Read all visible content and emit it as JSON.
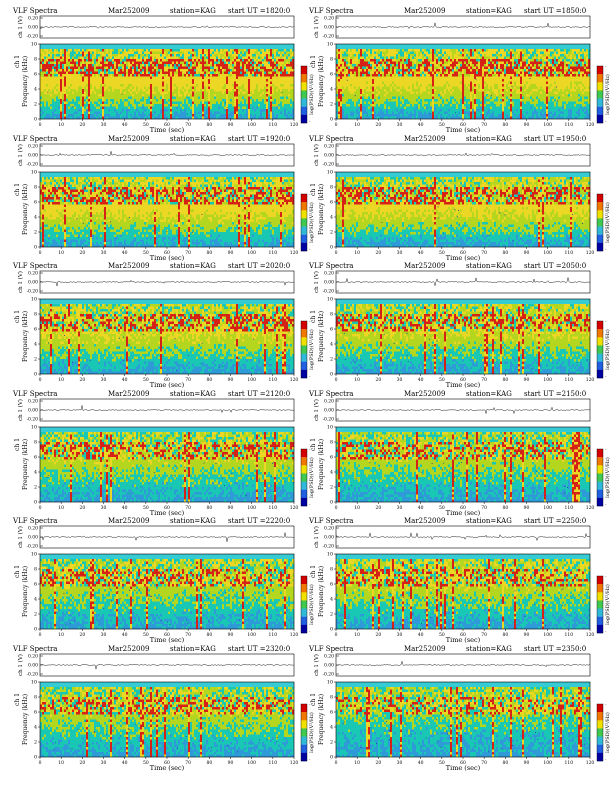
{
  "page_colors": {
    "background": "#ffffff",
    "axis": "#000000",
    "spectrogram_low": "#2e9ad8",
    "spectrogram_mid": "#19c8b4",
    "spectrogram_high_green": "#b4d61e",
    "spectrogram_yellow": "#ecd824",
    "spectrogram_red": "#d62216",
    "noise_dot": "#1e3ca0",
    "band_above": "#37cbd4"
  },
  "colorbar_stops": [
    "#d40000",
    "#f07800",
    "#f0e000",
    "#40c850",
    "#30b8d8",
    "#2060e0",
    "#0000a0"
  ],
  "chart_data": [
    {
      "type": "heatmap",
      "header": {
        "label": "VLF Spectra",
        "date": "Mar252009",
        "station": "station=KAG",
        "start": "start  UT =1820:0"
      },
      "top_ylabel": "ch 1 (V)",
      "top_ticks": [
        "0.20",
        "0.00",
        "-0.20"
      ],
      "ylabel_ch": "ch 1",
      "ylabel": "Frequency  (kHz)",
      "yticks": [
        "0",
        "2",
        "4",
        "6",
        "8",
        "10"
      ],
      "ylim": [
        0,
        10
      ],
      "xlabel": "Time  (sec)",
      "xticks": [
        "0",
        "10",
        "20",
        "30",
        "40",
        "50",
        "60",
        "70",
        "80",
        "90",
        "100",
        "110",
        "120"
      ],
      "xlim": [
        0,
        120
      ],
      "colorbar_label": "log(PSD)(V²/Hz)",
      "colorbar_ticks": [
        "-",
        "-"
      ],
      "intensity": 1.0,
      "hiss_band": [
        6.0,
        8.5
      ]
    },
    {
      "type": "heatmap",
      "header": {
        "label": "VLF Spectra",
        "date": "Mar252009",
        "station": "station=KAG",
        "start": "start  UT =1850:0"
      },
      "top_ylabel": "ch 1 (V)",
      "top_ticks": [
        "0.20",
        "0.00",
        "-0.20"
      ],
      "ylabel_ch": "ch 1",
      "ylabel": "Frequency  (kHz)",
      "yticks": [
        "0",
        "2",
        "4",
        "6",
        "8",
        "10"
      ],
      "ylim": [
        0,
        10
      ],
      "xlabel": "Time  (sec)",
      "xticks": [
        "0",
        "10",
        "20",
        "30",
        "40",
        "50",
        "60",
        "70",
        "80",
        "90",
        "100",
        "110",
        "120"
      ],
      "xlim": [
        0,
        120
      ],
      "colorbar_label": "log(PSD)(V²/Hz)",
      "colorbar_ticks": [
        "-",
        "-"
      ],
      "intensity": 0.95,
      "hiss_band": [
        6.0,
        8.5
      ]
    },
    {
      "type": "heatmap",
      "header": {
        "label": "VLF Spectra",
        "date": "Mar252009",
        "station": "station=KAG",
        "start": "start  UT =1920:0"
      },
      "top_ylabel": "ch 1 (V)",
      "top_ticks": [
        "0.20",
        "0.00",
        "-0.20"
      ],
      "ylabel_ch": "ch 1",
      "ylabel": "Frequency  (kHz)",
      "yticks": [
        "0",
        "2",
        "4",
        "6",
        "8",
        "10"
      ],
      "ylim": [
        0,
        10
      ],
      "xlabel": "Time  (sec)",
      "xticks": [
        "0",
        "10",
        "20",
        "30",
        "40",
        "50",
        "60",
        "70",
        "80",
        "90",
        "100",
        "110",
        "120"
      ],
      "xlim": [
        0,
        120
      ],
      "colorbar_label": "log(PSD)(V²/Hz)",
      "colorbar_ticks": [
        "-",
        "-"
      ],
      "intensity": 0.95,
      "hiss_band": [
        6.0,
        8.5
      ]
    },
    {
      "type": "heatmap",
      "header": {
        "label": "VLF Spectra",
        "date": "Mar252009",
        "station": "station=KAG",
        "start": "start  UT =1950:0"
      },
      "top_ylabel": "ch 1 (V)",
      "top_ticks": [
        "0.20",
        "0.00",
        "-0.20"
      ],
      "ylabel_ch": "ch 1",
      "ylabel": "Frequency  (kHz)",
      "yticks": [
        "0",
        "2",
        "4",
        "6",
        "8",
        "10"
      ],
      "ylim": [
        0,
        10
      ],
      "xlabel": "Time  (sec)",
      "xticks": [
        "0",
        "10",
        "20",
        "30",
        "40",
        "50",
        "60",
        "70",
        "80",
        "90",
        "100",
        "110",
        "120"
      ],
      "xlim": [
        0,
        120
      ],
      "colorbar_label": "log(PSD)(V²/Hz)",
      "colorbar_ticks": [
        "-",
        "-"
      ],
      "intensity": 0.9,
      "hiss_band": [
        6.0,
        8.5
      ]
    },
    {
      "type": "heatmap",
      "header": {
        "label": "VLF Spectra",
        "date": "Mar252009",
        "station": "station=KAG",
        "start": "start  UT =2020:0"
      },
      "top_ylabel": "ch 1 (V)",
      "top_ticks": [
        "0.20",
        "0.00",
        "-0.20"
      ],
      "ylabel_ch": "ch 1",
      "ylabel": "Frequency  (kHz)",
      "yticks": [
        "0",
        "2",
        "4",
        "6",
        "8",
        "10"
      ],
      "ylim": [
        0,
        10
      ],
      "xlabel": "Time  (sec)",
      "xticks": [
        "0",
        "10",
        "20",
        "30",
        "40",
        "50",
        "60",
        "70",
        "80",
        "90",
        "100",
        "110",
        "120"
      ],
      "xlim": [
        0,
        120
      ],
      "colorbar_label": "log(PSD)(V²/Hz)",
      "colorbar_ticks": [
        "-",
        "-"
      ],
      "intensity": 0.75,
      "hiss_band": [
        6.0,
        8.5
      ]
    },
    {
      "type": "heatmap",
      "header": {
        "label": "VLF Spectra",
        "date": "Mar252009",
        "station": "station=KAG",
        "start": "start  UT =2050:0"
      },
      "top_ylabel": "ch 1 (V)",
      "top_ticks": [
        "0.20",
        "0.00",
        "-0.20"
      ],
      "ylabel_ch": "ch 1",
      "ylabel": "Frequency  (kHz)",
      "yticks": [
        "0",
        "2",
        "4",
        "6",
        "8",
        "10"
      ],
      "ylim": [
        0,
        10
      ],
      "xlabel": "Time  (sec)",
      "xticks": [
        "0",
        "10",
        "20",
        "30",
        "40",
        "50",
        "60",
        "70",
        "80",
        "90",
        "100",
        "110",
        "120"
      ],
      "xlim": [
        0,
        120
      ],
      "colorbar_label": "log(PSD)(V²/Hz)",
      "colorbar_ticks": [
        "-",
        "-"
      ],
      "intensity": 0.7,
      "hiss_band": [
        6.0,
        8.5
      ]
    },
    {
      "type": "heatmap",
      "header": {
        "label": "VLF Spectra",
        "date": "Mar252009",
        "station": "station=KAG",
        "start": "start  UT =2120:0"
      },
      "top_ylabel": "ch 1 (V)",
      "top_ticks": [
        "0.20",
        "0.00",
        "-0.20"
      ],
      "ylabel_ch": "ch 1",
      "ylabel": "Frequency  (kHz)",
      "yticks": [
        "0",
        "2",
        "4",
        "6",
        "8",
        "10"
      ],
      "ylim": [
        0,
        10
      ],
      "xlabel": "Time  (sec)",
      "xticks": [
        "0",
        "10",
        "20",
        "30",
        "40",
        "50",
        "60",
        "70",
        "80",
        "90",
        "100",
        "110",
        "120"
      ],
      "xlim": [
        0,
        120
      ],
      "colorbar_label": "log(PSD)(V²/Hz)",
      "colorbar_ticks": [
        "-",
        "-"
      ],
      "intensity": 0.6,
      "hiss_band": [
        6.0,
        8.5
      ]
    },
    {
      "type": "heatmap",
      "header": {
        "label": "VLF Spectra",
        "date": "Mar252009",
        "station": "station=KAG",
        "start": "start  UT =2150:0"
      },
      "top_ylabel": "ch 1 (V)",
      "top_ticks": [
        "0.20",
        "0.00",
        "-0.20"
      ],
      "ylabel_ch": "ch 1",
      "ylabel": "Frequency  (kHz)",
      "yticks": [
        "0",
        "2",
        "4",
        "6",
        "8",
        "10"
      ],
      "ylim": [
        0,
        10
      ],
      "xlabel": "Time  (sec)",
      "xticks": [
        "0",
        "10",
        "20",
        "30",
        "40",
        "50",
        "60",
        "70",
        "80",
        "90",
        "100",
        "110",
        "120"
      ],
      "xlim": [
        0,
        120
      ],
      "colorbar_label": "log(PSD)(V²/Hz)",
      "colorbar_ticks": [
        "-",
        "-"
      ],
      "intensity": 0.55,
      "hiss_band": [
        6.0,
        8.5
      ]
    },
    {
      "type": "heatmap",
      "header": {
        "label": "VLF Spectra",
        "date": "Mar252009",
        "station": "station=KAG",
        "start": "start  UT =2220:0"
      },
      "top_ylabel": "ch 1 (V)",
      "top_ticks": [
        "0.20",
        "0.00",
        "-0.20"
      ],
      "ylabel_ch": "ch 1",
      "ylabel": "Frequency  (kHz)",
      "yticks": [
        "0",
        "2",
        "4",
        "6",
        "8",
        "10"
      ],
      "ylim": [
        0,
        10
      ],
      "xlabel": "Time  (sec)",
      "xticks": [
        "0",
        "10",
        "20",
        "30",
        "40",
        "50",
        "60",
        "70",
        "80",
        "90",
        "100",
        "110",
        "120"
      ],
      "xlim": [
        0,
        120
      ],
      "colorbar_label": "log(PSD)(V²/Hz)",
      "colorbar_ticks": [
        "-",
        "-"
      ],
      "intensity": 0.55,
      "hiss_band": [
        6.0,
        8.5
      ]
    },
    {
      "type": "heatmap",
      "header": {
        "label": "VLF Spectra",
        "date": "Mar252009",
        "station": "station=KAG",
        "start": "start  UT =2250:0"
      },
      "top_ylabel": "ch 1 (V)",
      "top_ticks": [
        "0.20",
        "0.00",
        "-0.20"
      ],
      "ylabel_ch": "ch 1",
      "ylabel": "Frequency  (kHz)",
      "yticks": [
        "0",
        "2",
        "4",
        "6",
        "8",
        "10"
      ],
      "ylim": [
        0,
        10
      ],
      "xlabel": "Time  (sec)",
      "xticks": [
        "0",
        "10",
        "20",
        "30",
        "40",
        "50",
        "60",
        "70",
        "80",
        "90",
        "100",
        "110",
        "120"
      ],
      "xlim": [
        0,
        120
      ],
      "colorbar_label": "log(PSD)(V²/Hz)",
      "colorbar_ticks": [
        "-",
        "-"
      ],
      "intensity": 0.6,
      "hiss_band": [
        6.0,
        8.5
      ]
    },
    {
      "type": "heatmap",
      "header": {
        "label": "VLF Spectra",
        "date": "Mar252009",
        "station": "station=KAG",
        "start": "start  UT =2320:0"
      },
      "top_ylabel": "ch 1 (V)",
      "top_ticks": [
        "0.20",
        "0.00",
        "-0.20"
      ],
      "ylabel_ch": "ch 1",
      "ylabel": "Frequency  (kHz)",
      "yticks": [
        "0",
        "2",
        "4",
        "6",
        "8",
        "10"
      ],
      "ylim": [
        0,
        10
      ],
      "xlabel": "Time  (sec)",
      "xticks": [
        "0",
        "10",
        "20",
        "30",
        "40",
        "50",
        "60",
        "70",
        "80",
        "90",
        "100",
        "110",
        "120"
      ],
      "xlim": [
        0,
        120
      ],
      "colorbar_label": "log(PSD)(V²/Hz)",
      "colorbar_ticks": [
        "-",
        "-"
      ],
      "intensity": 0.55,
      "hiss_band": [
        6.0,
        8.5
      ]
    },
    {
      "type": "heatmap",
      "header": {
        "label": "VLF Spectra",
        "date": "Mar252009",
        "station": "station=KAG",
        "start": "start  UT =2350:0"
      },
      "top_ylabel": "ch 1 (V)",
      "top_ticks": [
        "0.20",
        "0.00",
        "-0.20"
      ],
      "ylabel_ch": "ch 1",
      "ylabel": "Frequency  (kHz)",
      "yticks": [
        "0",
        "2",
        "4",
        "6",
        "8",
        "10"
      ],
      "ylim": [
        0,
        10
      ],
      "xlabel": "Time  (sec)",
      "xticks": [
        "0",
        "10",
        "20",
        "30",
        "40",
        "50",
        "60",
        "70",
        "80",
        "90",
        "100",
        "110",
        "120"
      ],
      "xlim": [
        0,
        120
      ],
      "colorbar_label": "log(PSD)(V²/Hz)",
      "colorbar_ticks": [
        "-",
        "-"
      ],
      "intensity": 0.4,
      "hiss_band": [
        6.0,
        8.5
      ]
    }
  ]
}
